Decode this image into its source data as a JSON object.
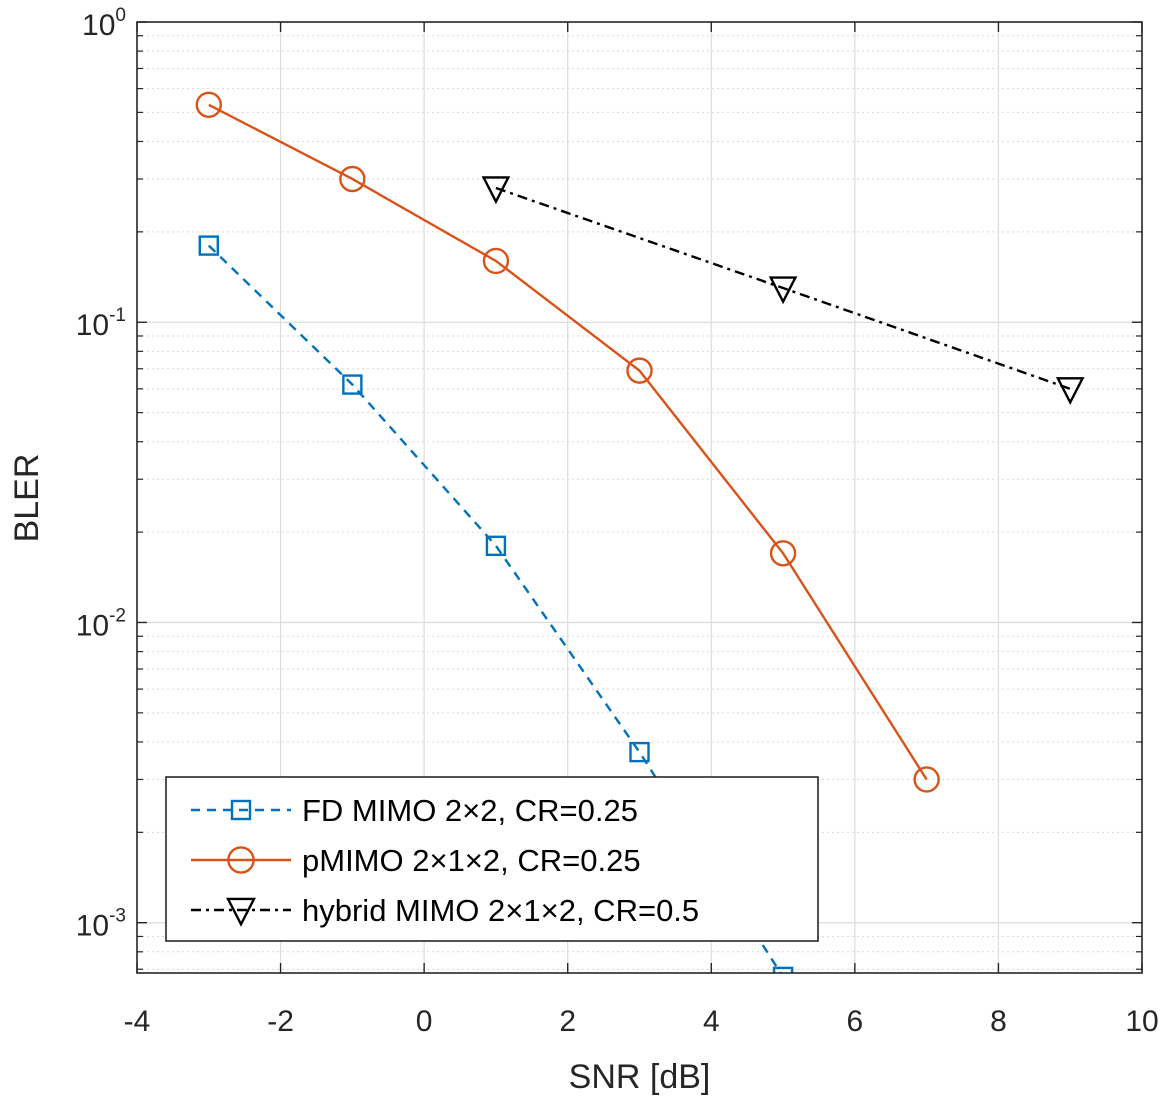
{
  "chart_data": {
    "type": "line",
    "title": "",
    "xlabel": "SNR [dB]",
    "ylabel": "BLER",
    "xlim": [
      -4,
      10
    ],
    "ylim": [
      0.00068,
      1
    ],
    "yscale": "log",
    "grid": true,
    "legend_position": "bottom-left",
    "x_ticks": [
      "-4",
      "-2",
      "0",
      "2",
      "4",
      "6",
      "8",
      "10"
    ],
    "y_ticks": [
      {
        "base": "10",
        "exp": "0",
        "value": 1
      },
      {
        "base": "10",
        "exp": "-1",
        "value": 0.1
      },
      {
        "base": "10",
        "exp": "-2",
        "value": 0.01
      },
      {
        "base": "10",
        "exp": "-3",
        "value": 0.001
      }
    ],
    "series": [
      {
        "name": "FD MIMO 2×2, CR=0.25",
        "color": "#0072BD",
        "line_style": "dashed",
        "marker": "square",
        "x": [
          -3,
          -1,
          1,
          3,
          5
        ],
        "y": [
          0.18,
          0.062,
          0.018,
          0.0037,
          0.00066
        ]
      },
      {
        "name": "pMIMO 2×1×2, CR=0.25",
        "color": "#D95319",
        "line_style": "solid",
        "marker": "circle",
        "x": [
          -3,
          -1,
          1,
          3,
          5,
          7
        ],
        "y": [
          0.53,
          0.3,
          0.16,
          0.069,
          0.017,
          0.003
        ]
      },
      {
        "name": "hybrid MIMO 2×1×2, CR=0.5",
        "color": "#000000",
        "line_style": "dashdot",
        "marker": "triangle-down",
        "x": [
          1,
          5,
          9
        ],
        "y": [
          0.28,
          0.13,
          0.06
        ]
      }
    ]
  }
}
